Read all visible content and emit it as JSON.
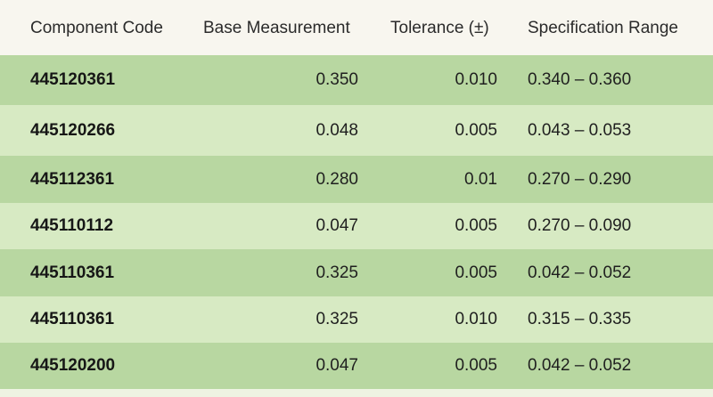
{
  "headers": {
    "code": "Component Code",
    "base": "Base Measurement",
    "tolerance": "Tolerance (±)",
    "spec": "Specification Range"
  },
  "rows": [
    {
      "code": "445120361",
      "base": "0.350",
      "tolerance": "0.010",
      "spec": "0.340 – 0.360"
    },
    {
      "code": "445120266",
      "base": "0.048",
      "tolerance": "0.005",
      "spec": "0.043 – 0.053"
    },
    {
      "code": "445112361",
      "base": "0.280",
      "tolerance": "0.01",
      "spec": "0.270 – 0.290"
    },
    {
      "code": "445110112",
      "base": "0.047",
      "tolerance": "0.005",
      "spec": "0.270 – 0.090"
    },
    {
      "code": "445110361",
      "base": "0.325",
      "tolerance": "0.005",
      "spec": "0.042 – 0.052"
    },
    {
      "code": "445110361",
      "base": "0.325",
      "tolerance": "0.010",
      "spec": "0.315 – 0.335"
    },
    {
      "code": "445120200",
      "base": "0.047",
      "tolerance": "0.005",
      "spec": "0.042 – 0.052"
    }
  ],
  "colors": {
    "row_dark": "#b8d7a1",
    "row_light": "#d7eac3",
    "header_bg": "#f8f6ef"
  }
}
